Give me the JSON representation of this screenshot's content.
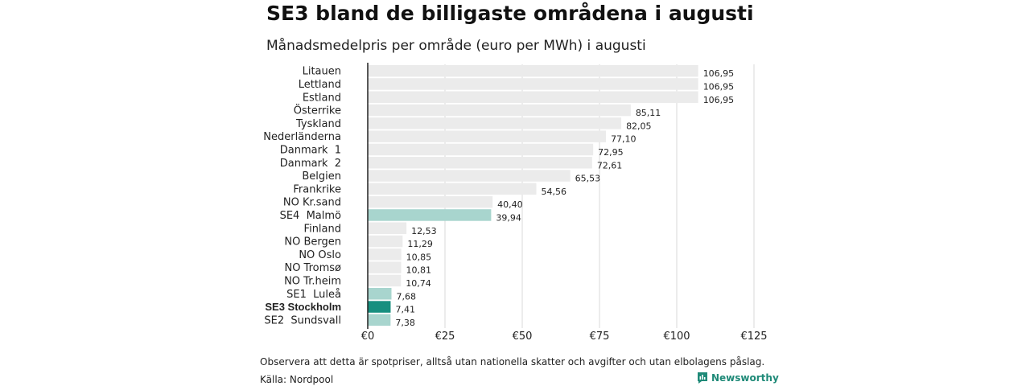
{
  "header": {
    "title": "SE3 bland de billigaste områdena i augusti",
    "subtitle": "Månadsmedelpris per område (euro per MWh) i augusti"
  },
  "footer": {
    "note": "Observera att detta är spotpriser, alltså utan nationella skatter och avgifter och utan elbolagens påslag.",
    "source": "Källa: Nordpool",
    "brand": "Newsworthy"
  },
  "colors": {
    "bar_default": "#ebebeb",
    "bar_se_other": "#a8d5ce",
    "bar_se3": "#178f7f",
    "gridline": "#d9d9d9",
    "axis": "#222222",
    "brand": "#1f8a78"
  },
  "chart_data": {
    "type": "bar",
    "orientation": "horizontal",
    "categories": [
      "Litauen",
      "Lettland",
      "Estland",
      "Österrike",
      "Tyskland",
      "Nederländerna",
      "Danmark  1",
      "Danmark  2",
      "Belgien",
      "Frankrike",
      "NO Kr.sand",
      "SE4  Malmö",
      "Finland",
      "NO Bergen",
      "NO Oslo",
      "NO Tromsø",
      "NO Tr.heim",
      "SE1  Luleå",
      "SE3 Stockholm",
      "SE2  Sundsvall"
    ],
    "values": [
      106.95,
      106.95,
      106.95,
      85.11,
      82.05,
      77.1,
      72.95,
      72.61,
      65.53,
      54.56,
      40.4,
      39.94,
      12.53,
      11.29,
      10.85,
      10.81,
      10.74,
      7.68,
      7.41,
      7.38
    ],
    "value_labels": [
      "106,95",
      "106,95",
      "106,95",
      "85,11",
      "82,05",
      "77,10",
      "72,95",
      "72,61",
      "65,53",
      "54,56",
      "40,40",
      "39,94",
      "12,53",
      "11,29",
      "10,85",
      "10,81",
      "10,74",
      "7,68",
      "7,41",
      "7,38"
    ],
    "highlight": [
      "normal",
      "normal",
      "normal",
      "normal",
      "normal",
      "normal",
      "normal",
      "normal",
      "normal",
      "normal",
      "normal",
      "se",
      "normal",
      "normal",
      "normal",
      "normal",
      "normal",
      "se",
      "se3",
      "se"
    ],
    "xlim": [
      0,
      125
    ],
    "xticks": [
      0,
      25,
      50,
      75,
      100,
      125
    ],
    "xtick_labels": [
      "€0",
      "€25",
      "€50",
      "€75",
      "€100",
      "€125"
    ],
    "grid": "vertical"
  }
}
